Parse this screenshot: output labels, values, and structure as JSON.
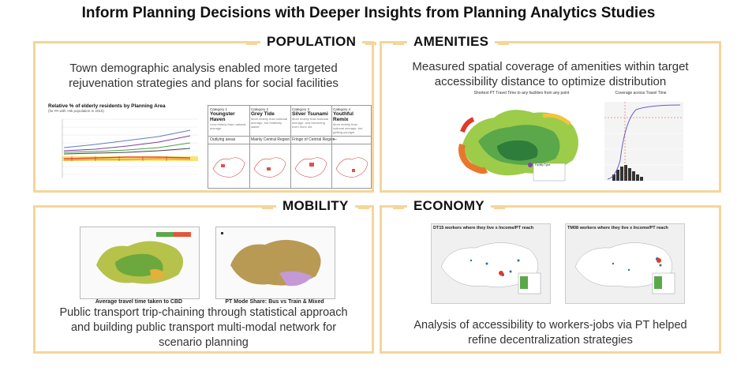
{
  "page": {
    "title": "Inform Planning Decisions with Deeper Insights from Planning Analytics Studies"
  },
  "population": {
    "heading": "POPULATION",
    "description_line1": "Town demographic analysis enabled more targeted",
    "description_line2": "rejuvenation strategies and plans for social facilities",
    "chart_title": "Relative % of elderly residents by Planning Area",
    "chart_subtitle": "(for PA with >5k population in 2015)",
    "categories": [
      {
        "id": "Category 1",
        "name": "Youngster Haven",
        "desc": "Less elderly than national average",
        "region": "Outlying areas"
      },
      {
        "id": "Category 2",
        "name": "Grey Tide",
        "desc": "More elderly than national average, but relatively stable",
        "region": "Mainly Central Region"
      },
      {
        "id": "Category 3",
        "name": "Silver Tsunami",
        "desc": "More elderly than national average, and becoming even more old",
        "region": "Fringe of Central Region"
      },
      {
        "id": "Category 4",
        "name": "Youthful Remix",
        "desc": "More elderly than national average, but getting younger",
        "region": "---"
      }
    ]
  },
  "amenities": {
    "heading": "AMENITIES",
    "description_line1": "Measured spatial coverage of amenities within target",
    "description_line2": "accessibility distance to optimize distribution",
    "map_title": "Shortest PT Travel Time to any facilities from any point",
    "chart_title": "Coverage across Travel Time",
    "legend_title": "Facility Type"
  },
  "mobility": {
    "heading": "MOBILITY",
    "caption_left": "Average travel time taken to CBD",
    "caption_right": "PT Mode Share: Bus vs Train & Mixed",
    "description_line1": "Public transport trip-chaining through statistical approach",
    "description_line2": "and building public transport multi-modal network for",
    "description_line3": "scenario planning"
  },
  "economy": {
    "heading": "ECONOMY",
    "map_left_title": "DT15 workers where they live x Income/PT reach",
    "map_right_title": "TM08 workers where they live x Income/PT reach",
    "description_line1": "Analysis of accessibility to workers-jobs via PT helped",
    "description_line2": "refine decentralization strategies"
  },
  "colors": {
    "panel_border": "#f5d59a",
    "accent_orange": "#e8762c",
    "accent_green": "#5aa84a"
  }
}
